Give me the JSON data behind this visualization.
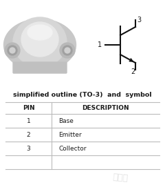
{
  "title": "simplified outline (TO-3)  and  symbol",
  "table_headers": [
    "PIN",
    "DESCRIPTION"
  ],
  "table_rows": [
    [
      "1",
      "Base"
    ],
    [
      "2",
      "Emitter"
    ],
    [
      "3",
      "Collector"
    ]
  ],
  "background_color": "#ffffff",
  "header_fontsize": 6.5,
  "title_fontsize": 6.8,
  "cell_fontsize": 6.5,
  "table_line_color": "#bbbbbb",
  "text_color": "#1a1a1a",
  "watermark_text": "水良体",
  "watermark_color": "#cccccc"
}
